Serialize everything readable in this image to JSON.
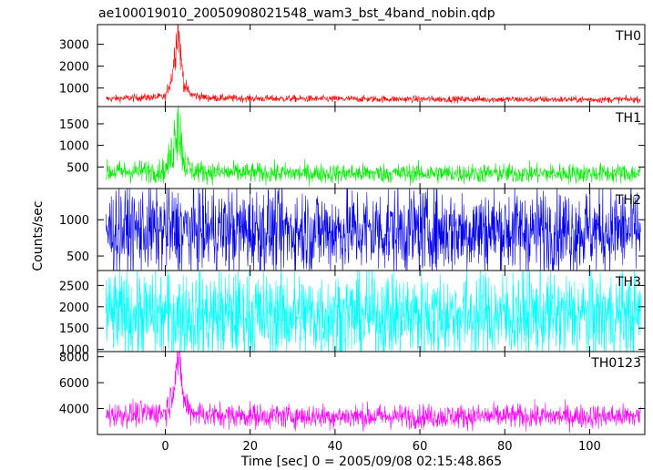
{
  "chart_data": {
    "type": "line",
    "title": "ae100019010_20050908021548_wam3_bst_4band_nobin.qdp",
    "xlabel": "Time [sec] 0 = 2005/09/08 02:15:48.865",
    "ylabel": "Counts/sec",
    "xlim": [
      -16,
      113
    ],
    "x_ticks": [
      0,
      20,
      40,
      60,
      80,
      100
    ],
    "grid": false,
    "panels": [
      {
        "name": "TH0",
        "color": "#ff0000",
        "ylim": [
          150,
          3900
        ],
        "y_ticks": [
          1000,
          2000,
          3000
        ],
        "series": [
          {
            "x": [
              -14,
              0,
              1.5,
              2.5,
              3,
              3.5,
              4.5,
              6,
              10,
              20,
              40,
              60,
              80,
              100,
              112
            ],
            "y": [
              500,
              600,
              1500,
              3000,
              3800,
              2600,
              1100,
              700,
              550,
              520,
              500,
              490,
              480,
              470,
              480
            ]
          }
        ]
      },
      {
        "name": "TH1",
        "color": "#00ee00",
        "ylim": [
          0,
          1900
        ],
        "y_ticks": [
          500,
          1000,
          1500
        ],
        "series": [
          {
            "x": [
              -14,
              0,
              1.5,
              2.5,
              3,
              3.5,
              4.5,
              6,
              10,
              20,
              40,
              60,
              80,
              100,
              112
            ],
            "y": [
              380,
              420,
              800,
              1400,
              1800,
              1200,
              600,
              420,
              380,
              360,
              350,
              350,
              350,
              350,
              350
            ]
          }
        ]
      },
      {
        "name": "TH2",
        "color": "#0000ee",
        "ylim": [
          300,
          1430
        ],
        "y_ticks": [
          500,
          1000
        ],
        "series": [
          {
            "x": [
              -14,
              0,
              20,
              40,
              60,
              80,
              100,
              112
            ],
            "y": [
              850,
              850,
              850,
              850,
              850,
              850,
              850,
              850
            ]
          }
        ]
      },
      {
        "name": "TH3",
        "color": "#00ffff",
        "ylim": [
          950,
          2850
        ],
        "y_ticks": [
          1000,
          1500,
          2000,
          2500
        ],
        "series": [
          {
            "x": [
              -14,
              0,
              20,
              40,
              60,
              80,
              100,
              112
            ],
            "y": [
              1800,
              1800,
              1800,
              1800,
              1800,
              1800,
              1800,
              1800
            ]
          }
        ]
      },
      {
        "name": "TH0123",
        "color": "#ff00ff",
        "ylim": [
          2000,
          8400
        ],
        "y_ticks": [
          4000,
          6000,
          8000
        ],
        "series": [
          {
            "x": [
              -14,
              0,
              1.5,
              2.5,
              3,
              3.5,
              4.5,
              6,
              10,
              20,
              40,
              60,
              80,
              100,
              112
            ],
            "y": [
              3500,
              3700,
              5000,
              7300,
              8200,
              6800,
              4500,
              3800,
              3500,
              3450,
              3400,
              3400,
              3400,
              3400,
              3400
            ]
          }
        ]
      }
    ]
  }
}
